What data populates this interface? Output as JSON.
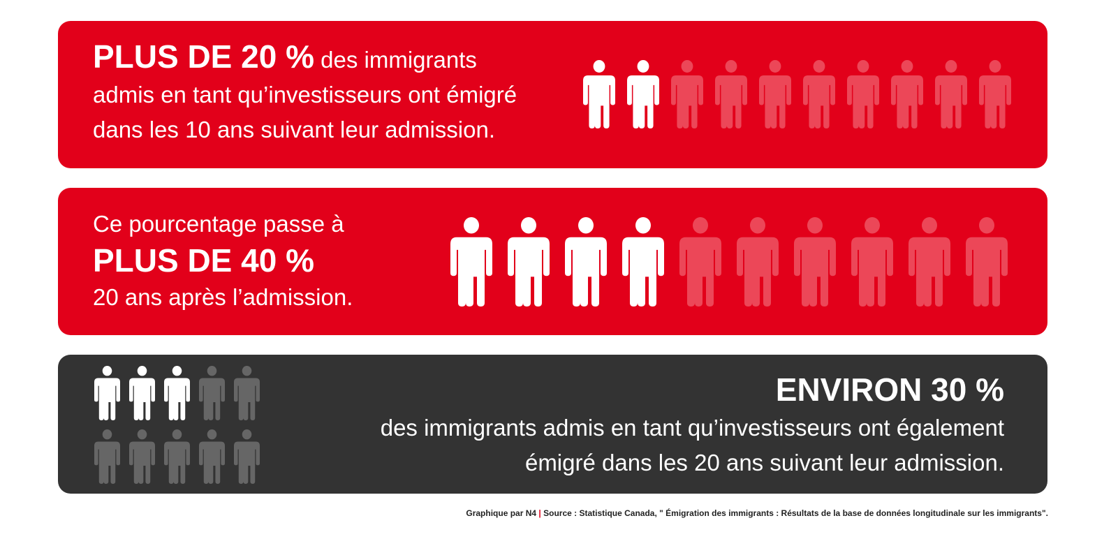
{
  "colors": {
    "red": "#e2001a",
    "dark": "#333333",
    "figure_on": "#ffffff",
    "figure_off_on_red": "#ec4758",
    "figure_off_on_dark": "#666666"
  },
  "icon": "person-icon",
  "stat1": {
    "highlight": "PLUS DE 20 %",
    "rest_line1": " des immigrants",
    "line2": "admis en tant qu’investisseurs ont émigré",
    "line3": "dans les 10 ans suivant leur admission.",
    "figures_total": 10,
    "figures_highlighted": 2
  },
  "stat2": {
    "line1": "Ce pourcentage passe à",
    "highlight": "PLUS DE 40 %",
    "line3": "20 ans après l’admission.",
    "figures_total": 10,
    "figures_highlighted": 4
  },
  "stat3": {
    "highlight": "ENVIRON 30 %",
    "line2": "des immigrants admis en tant qu’investisseurs ont également",
    "line3": "émigré dans les 20 ans suivant leur admission.",
    "figures_total": 10,
    "figures_highlighted": 3
  },
  "credit": {
    "by": "Graphique par N4",
    "separator": "|",
    "source": "Source : Statistique Canada, \" Émigration des immigrants : Résultats de la base de données longitudinale sur les immigrants\"."
  }
}
